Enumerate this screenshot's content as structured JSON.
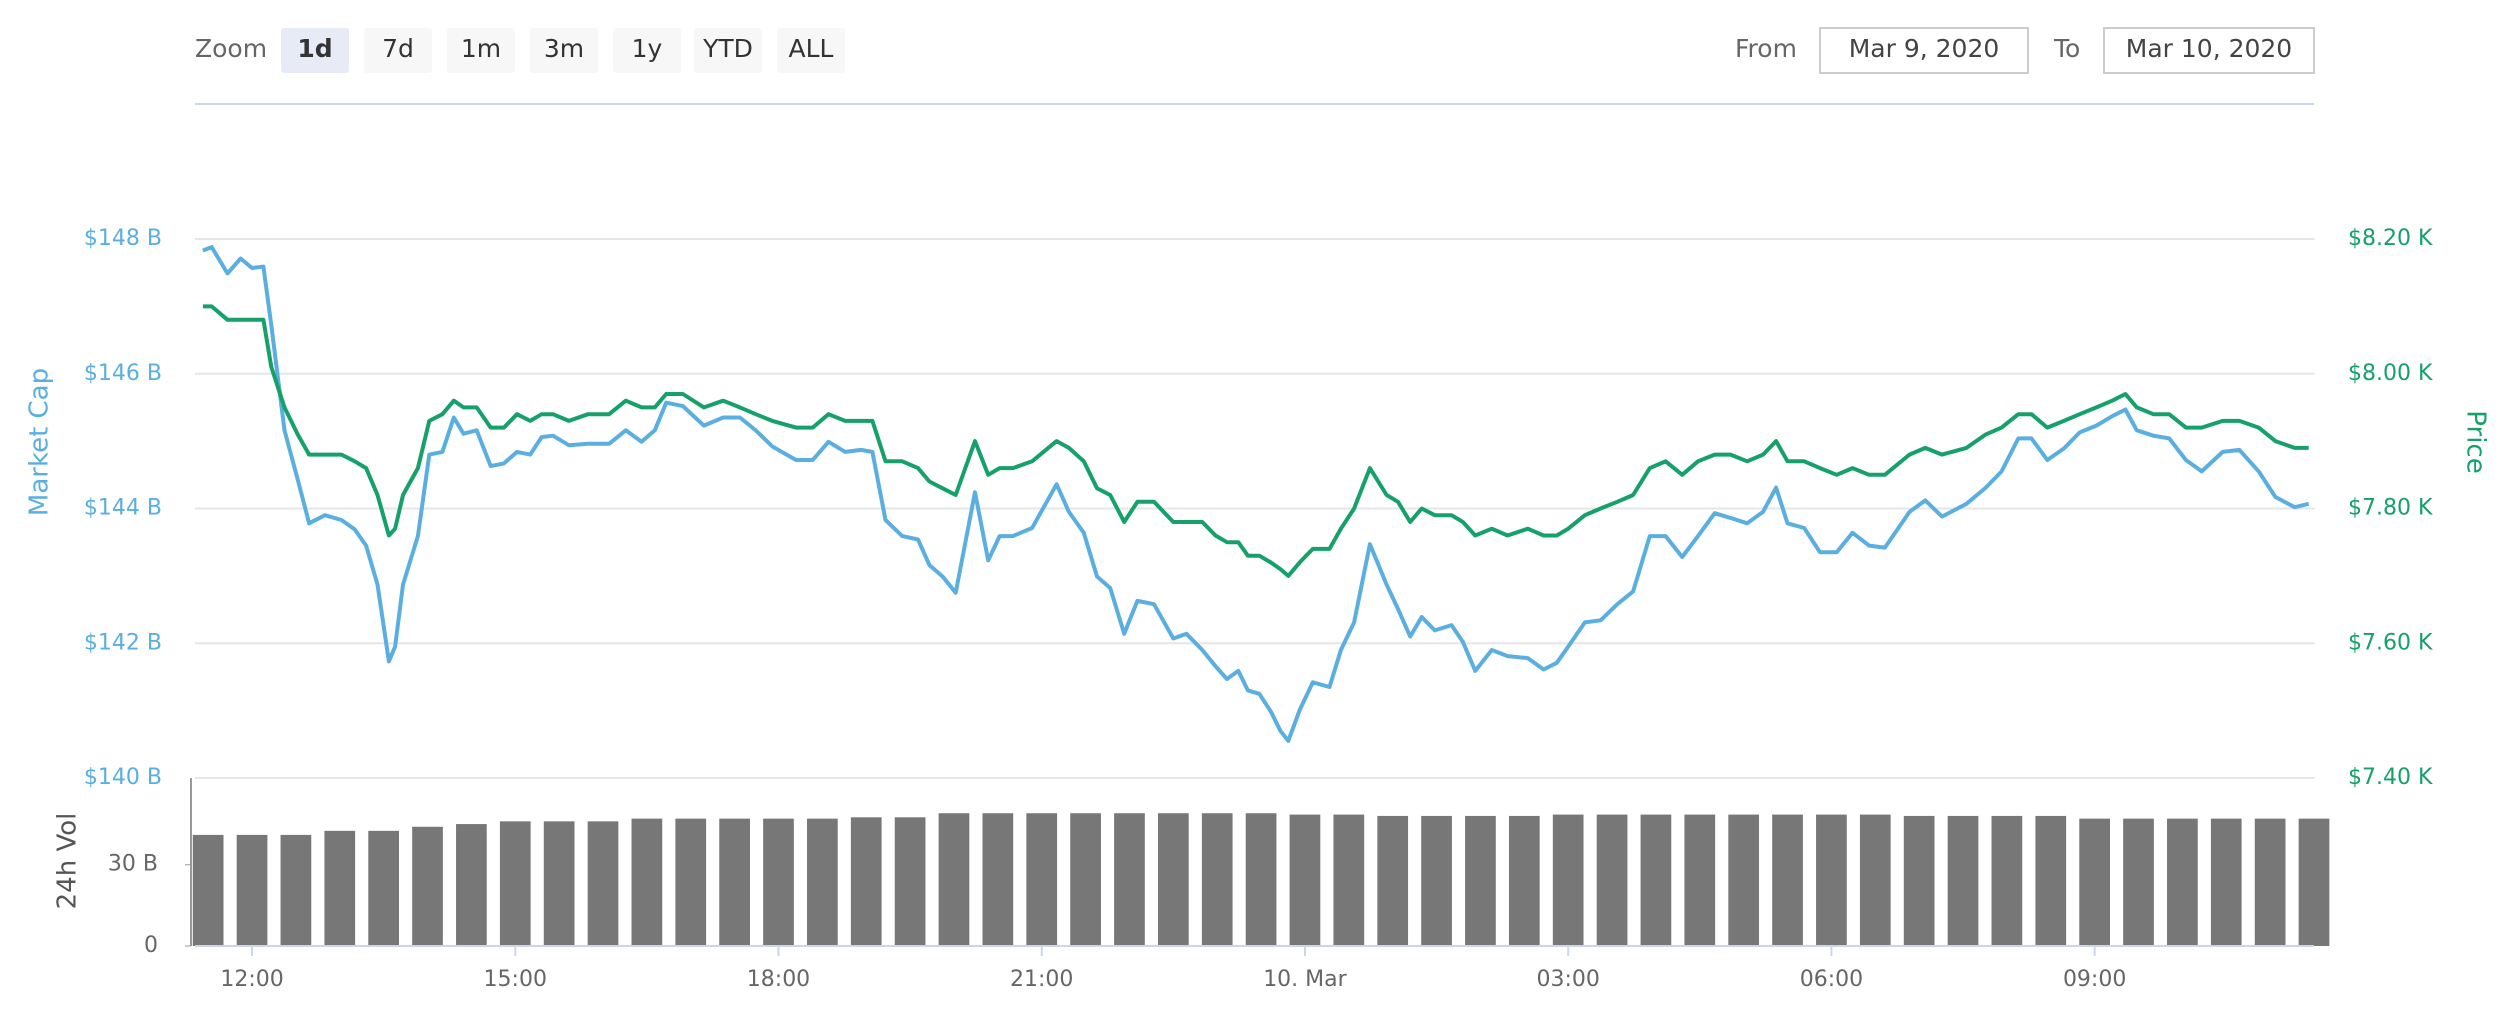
{
  "toolbar": {
    "zoom_label": "Zoom",
    "zoom_options": [
      "1d",
      "7d",
      "1m",
      "3m",
      "1y",
      "YTD",
      "ALL"
    ],
    "selected_index": 0,
    "from_label": "From",
    "from": "Mar 9, 2020",
    "to_label": "To",
    "to": "Mar 10, 2020"
  },
  "chart_data": {
    "type": "line",
    "x": [
      11.44,
      11.54,
      11.72,
      11.87,
      12.0,
      12.13,
      12.22,
      12.37,
      12.52,
      12.65,
      12.83,
      13.02,
      13.17,
      13.3,
      13.43,
      13.56,
      13.63,
      13.72,
      13.89,
      14.02,
      14.17,
      14.3,
      14.41,
      14.56,
      14.72,
      14.87,
      15.02,
      15.17,
      15.3,
      15.43,
      15.61,
      15.83,
      16.07,
      16.26,
      16.44,
      16.59,
      16.72,
      16.91,
      17.15,
      17.37,
      17.56,
      17.74,
      17.93,
      18.2,
      18.39,
      18.57,
      18.76,
      18.94,
      19.07,
      19.22,
      19.41,
      19.59,
      19.72,
      19.87,
      20.02,
      20.24,
      20.39,
      20.52,
      20.67,
      20.89,
      21.17,
      21.31,
      21.48,
      21.63,
      21.78,
      21.94,
      22.09,
      22.28,
      22.5,
      22.65,
      22.83,
      22.98,
      23.11,
      23.24,
      23.35,
      23.48,
      23.61,
      23.72,
      23.81,
      23.94,
      24.09,
      24.28,
      24.41,
      24.56,
      24.74,
      24.93,
      25.06,
      25.2,
      25.33,
      25.48,
      25.67,
      25.8,
      25.94,
      26.13,
      26.31,
      26.54,
      26.72,
      26.87,
      27.0,
      27.19,
      27.37,
      27.56,
      27.74,
      27.93,
      28.11,
      28.3,
      28.48,
      28.67,
      28.85,
      29.04,
      29.22,
      29.37,
      29.5,
      29.69,
      29.87,
      30.06,
      30.24,
      30.43,
      30.61,
      30.89,
      31.07,
      31.26,
      31.54,
      31.76,
      31.94,
      32.13,
      32.28,
      32.46,
      32.65,
      32.83,
      33.02,
      33.2,
      33.35,
      33.48,
      33.67,
      33.85,
      34.04,
      34.22,
      34.46,
      34.65,
      34.87,
      35.06,
      35.28,
      35.44
    ],
    "series": [
      {
        "name": "Market Cap",
        "color": "#5aafe0",
        "axis": "y",
        "values": [
          147.83,
          147.88,
          147.49,
          147.71,
          147.57,
          147.59,
          146.72,
          145.16,
          144.43,
          143.78,
          143.9,
          143.83,
          143.69,
          143.45,
          142.87,
          141.73,
          141.95,
          142.87,
          143.59,
          144.8,
          144.84,
          145.35,
          145.11,
          145.16,
          144.63,
          144.67,
          144.84,
          144.8,
          145.06,
          145.08,
          144.94,
          144.96,
          144.96,
          145.16,
          144.99,
          145.16,
          145.57,
          145.52,
          145.23,
          145.35,
          145.35,
          145.16,
          144.92,
          144.72,
          144.72,
          144.99,
          144.84,
          144.87,
          144.84,
          143.83,
          143.59,
          143.54,
          143.16,
          142.99,
          142.75,
          144.24,
          143.23,
          143.59,
          143.59,
          143.71,
          144.36,
          143.95,
          143.64,
          142.99,
          142.82,
          142.14,
          142.63,
          142.58,
          142.07,
          142.14,
          141.9,
          141.66,
          141.47,
          141.59,
          141.3,
          141.25,
          140.99,
          140.7,
          140.55,
          141.01,
          141.42,
          141.35,
          141.9,
          142.31,
          143.47,
          142.87,
          142.51,
          142.1,
          142.39,
          142.19,
          142.27,
          142.02,
          141.59,
          141.9,
          141.81,
          141.78,
          141.61,
          141.71,
          141.95,
          142.31,
          142.34,
          142.58,
          142.77,
          143.59,
          143.59,
          143.28,
          143.59,
          143.93,
          143.86,
          143.78,
          143.95,
          144.31,
          143.78,
          143.71,
          143.35,
          143.35,
          143.64,
          143.45,
          143.42,
          143.95,
          144.12,
          143.88,
          144.07,
          144.31,
          144.55,
          145.04,
          145.04,
          144.72,
          144.89,
          145.13,
          145.23,
          145.37,
          145.47,
          145.16,
          145.08,
          145.04,
          144.72,
          144.55,
          144.84,
          144.87,
          144.55,
          144.17,
          144.02,
          144.07
        ]
      },
      {
        "name": "Price",
        "color": "#16a06a",
        "axis": "y2",
        "values": [
          8.1,
          8.1,
          8.08,
          8.08,
          8.08,
          8.08,
          8.01,
          7.95,
          7.91,
          7.88,
          7.88,
          7.88,
          7.87,
          7.86,
          7.82,
          7.76,
          7.77,
          7.82,
          7.86,
          7.93,
          7.94,
          7.96,
          7.95,
          7.95,
          7.92,
          7.92,
          7.94,
          7.93,
          7.94,
          7.94,
          7.93,
          7.94,
          7.94,
          7.96,
          7.95,
          7.95,
          7.97,
          7.97,
          7.95,
          7.96,
          7.95,
          7.94,
          7.93,
          7.92,
          7.92,
          7.94,
          7.93,
          7.93,
          7.93,
          7.87,
          7.87,
          7.86,
          7.84,
          7.83,
          7.82,
          7.9,
          7.85,
          7.86,
          7.86,
          7.87,
          7.9,
          7.89,
          7.87,
          7.83,
          7.82,
          7.78,
          7.81,
          7.81,
          7.78,
          7.78,
          7.78,
          7.76,
          7.75,
          7.75,
          7.73,
          7.73,
          7.72,
          7.71,
          7.7,
          7.72,
          7.74,
          7.74,
          7.77,
          7.8,
          7.86,
          7.82,
          7.81,
          7.78,
          7.8,
          7.79,
          7.79,
          7.78,
          7.76,
          7.77,
          7.76,
          7.77,
          7.76,
          7.76,
          7.77,
          7.79,
          7.8,
          7.81,
          7.82,
          7.86,
          7.87,
          7.85,
          7.87,
          7.88,
          7.88,
          7.87,
          7.88,
          7.9,
          7.87,
          7.87,
          7.86,
          7.85,
          7.86,
          7.85,
          7.85,
          7.88,
          7.89,
          7.88,
          7.89,
          7.91,
          7.92,
          7.94,
          7.94,
          7.92,
          7.93,
          7.94,
          7.95,
          7.96,
          7.97,
          7.95,
          7.94,
          7.94,
          7.92,
          7.92,
          7.93,
          7.93,
          7.92,
          7.9,
          7.89,
          7.89
        ]
      }
    ],
    "xlim": [
      11.35,
      35.5
    ],
    "xticks": [
      {
        "value": 12,
        "label": "12:00"
      },
      {
        "value": 15,
        "label": "15:00"
      },
      {
        "value": 18,
        "label": "18:00"
      },
      {
        "value": 21,
        "label": "21:00"
      },
      {
        "value": 24,
        "label": "10. Mar"
      },
      {
        "value": 27,
        "label": "03:00"
      },
      {
        "value": 30,
        "label": "06:00"
      },
      {
        "value": 33,
        "label": "09:00"
      }
    ],
    "ylim": [
      140,
      148
    ],
    "yticks": [
      {
        "value": 140,
        "label": "$140 B"
      },
      {
        "value": 142,
        "label": "$142 B"
      },
      {
        "value": 144,
        "label": "$144 B"
      },
      {
        "value": 146,
        "label": "$146 B"
      },
      {
        "value": 148,
        "label": "$148 B"
      }
    ],
    "y2lim": [
      7.4,
      8.2
    ],
    "y2ticks": [
      {
        "value": 7.4,
        "label": "$7.40 K"
      },
      {
        "value": 7.6,
        "label": "$7.60 K"
      },
      {
        "value": 7.8,
        "label": "$7.80 K"
      },
      {
        "value": 8.0,
        "label": "$8.00 K"
      },
      {
        "value": 8.2,
        "label": "$8.20 K"
      }
    ],
    "grid": true,
    "volume": {
      "type": "bar",
      "name": "24h Vol",
      "color": "#777777",
      "x": [
        11.5,
        12,
        12.5,
        13,
        13.5,
        14,
        14.5,
        15,
        15.5,
        16,
        16.5,
        17,
        17.5,
        18,
        18.5,
        19,
        19.5,
        20,
        20.5,
        21,
        21.5,
        22,
        22.5,
        23,
        23.5,
        24,
        24.5,
        25,
        25.5,
        26,
        26.5,
        27,
        27.5,
        28,
        28.5,
        29,
        29.5,
        30,
        30.5,
        31,
        31.5,
        32,
        32.5,
        33,
        33.5,
        34,
        34.5,
        35,
        35.5
      ],
      "values": [
        41,
        41,
        41,
        42.5,
        42.5,
        44,
        45,
        46,
        46,
        46,
        47,
        47,
        47,
        47,
        47,
        47.5,
        47.5,
        49,
        49,
        49,
        49,
        49,
        49,
        49,
        49,
        48.5,
        48.5,
        48,
        48,
        48,
        48,
        48.5,
        48.5,
        48.5,
        48.5,
        48.5,
        48.5,
        48.5,
        48.5,
        48,
        48,
        48,
        48,
        47,
        47,
        47,
        47,
        47,
        47
      ],
      "ylim": [
        0,
        62
      ],
      "yticks": [
        0,
        {
          "value": 30,
          "label": "30 B"
        }
      ]
    }
  }
}
